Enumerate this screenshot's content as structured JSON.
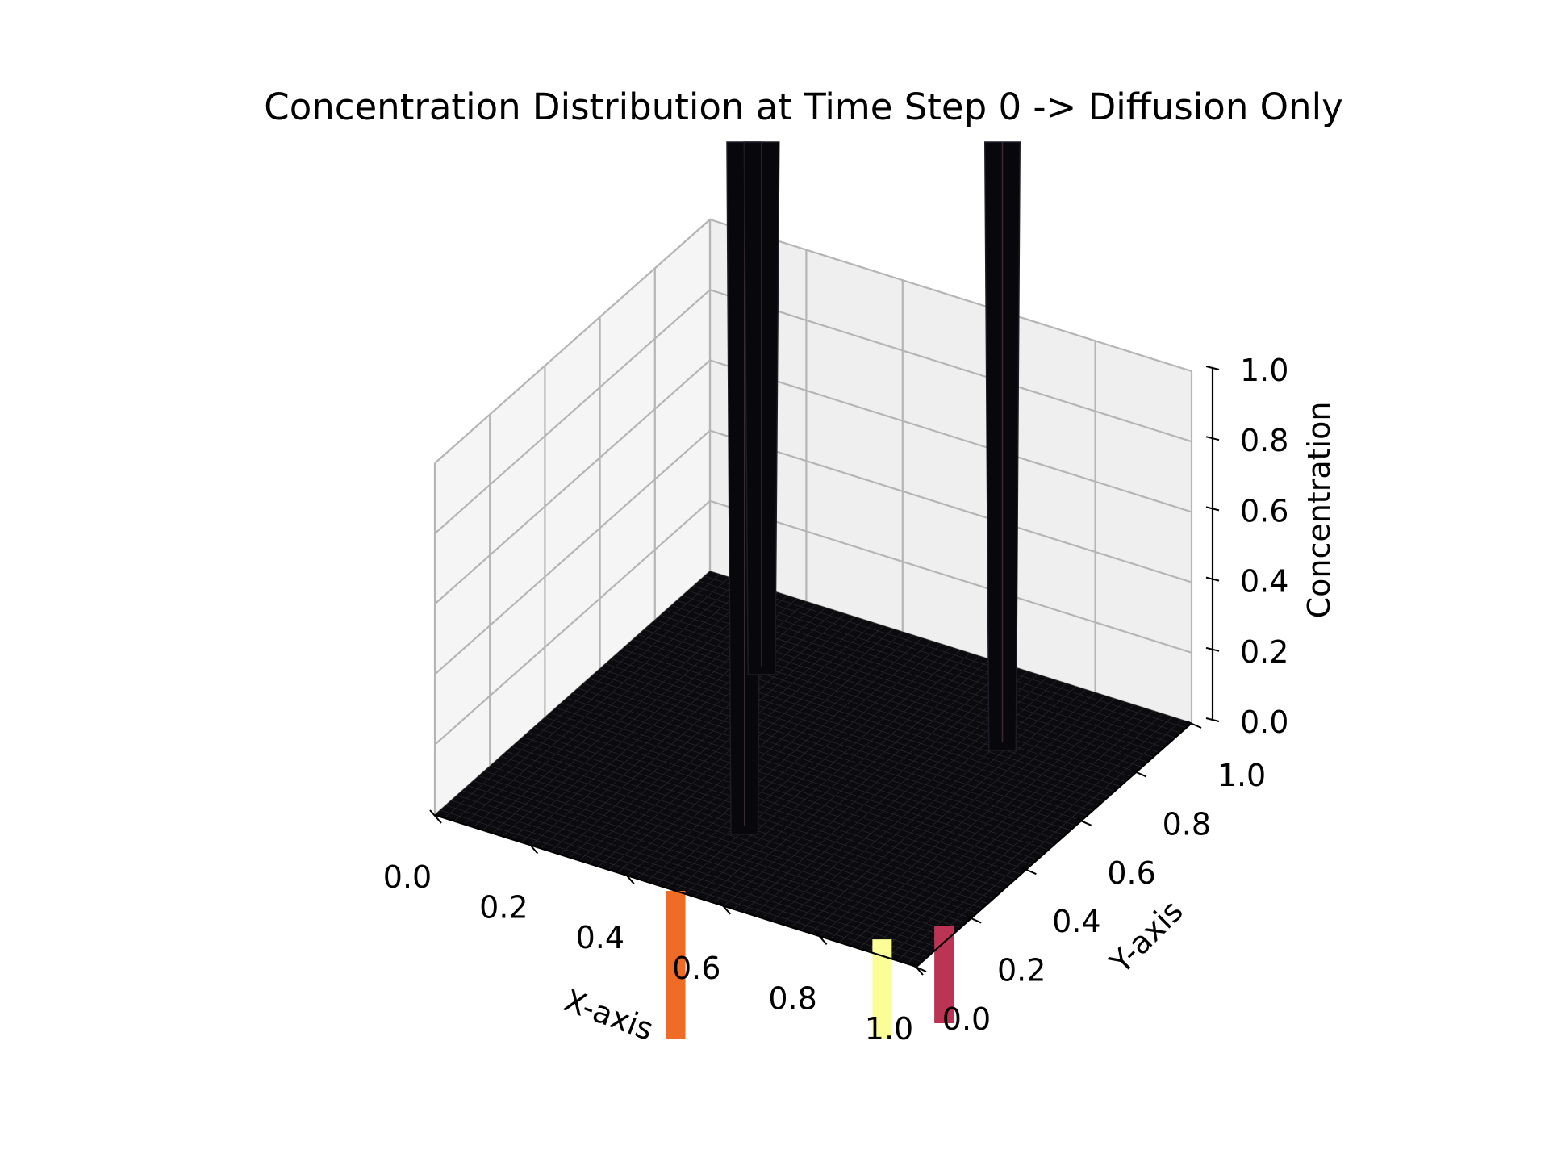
{
  "chart_data": {
    "type": "surface3d",
    "title": "Concentration Distribution at Time Step 0 -> Diffusion Only",
    "xlabel": "X-axis",
    "ylabel": "Y-axis",
    "zlabel": "Concentration",
    "xlim": [
      0,
      1
    ],
    "ylim": [
      0,
      1
    ],
    "zlim": [
      0,
      1
    ],
    "x_ticks": [
      "0.0",
      "0.2",
      "0.4",
      "0.6",
      "0.8",
      "1.0"
    ],
    "y_ticks": [
      "0.0",
      "0.2",
      "0.4",
      "0.6",
      "0.8",
      "1.0"
    ],
    "z_ticks": [
      "0.0",
      "0.2",
      "0.4",
      "0.6",
      "0.8",
      "1.0"
    ],
    "grid": true,
    "colormap": "inferno",
    "surface_color": "#0b0b0f",
    "base_value": 0,
    "peaks": [
      {
        "x": 0.5,
        "y": 0.25,
        "value": 1.0
      },
      {
        "x": 0.75,
        "y": 0.75,
        "value": 1.0
      },
      {
        "x": 0.25,
        "y": 0.75,
        "value": 1.0
      }
    ],
    "visible_colored_bands": [
      {
        "x": 0.5,
        "y": 0.0,
        "color": "#ef6c26"
      },
      {
        "x": 0.9,
        "y": 0.05,
        "color": "#fbfd97"
      },
      {
        "x": 1.0,
        "y": 0.1,
        "color": "#bb3453"
      }
    ]
  }
}
